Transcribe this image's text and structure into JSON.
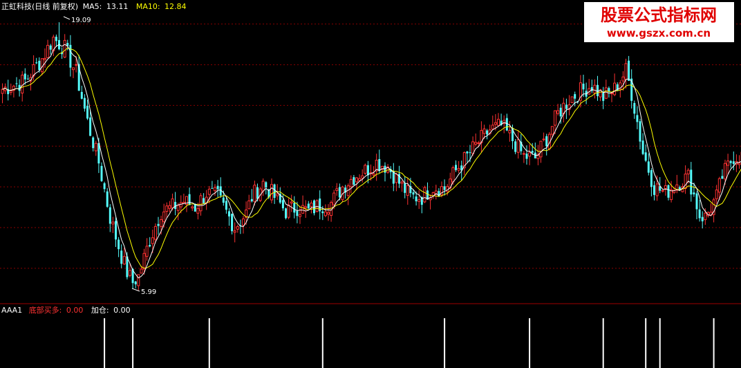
{
  "chart_data": {
    "type": "candlestick",
    "header": {
      "stock": "正虹科技(日线 前复权)",
      "ma5_label": "MA5:",
      "ma5_value": "13.11",
      "ma10_label": "MA10:",
      "ma10_value": "12.84"
    },
    "annotations": {
      "high_label": "19.09",
      "high_value": 19.09,
      "low_label": "5.99",
      "low_value": 5.99
    },
    "indicator": {
      "name": "AAA1",
      "signal_label": "底部买多:",
      "signal_value": "0.00",
      "add_label": "加仓:",
      "add_value": "0.00"
    },
    "watermark": {
      "title": "股票公式指标网",
      "url": "www.gszx.com.cn"
    },
    "ylim": [
      5.5,
      19.5
    ],
    "colors": {
      "up": "#ff3232",
      "down": "#54fcfc",
      "ma5": "#ffffff",
      "ma10": "#ffff00",
      "grid": "#8b0000",
      "signal": "#ffffff",
      "header_text": "#ffffff",
      "ma10_text": "#ffff00",
      "signal_text": "#ff3232"
    },
    "anchors": [
      [
        0,
        15.8
      ],
      [
        8,
        16.2
      ],
      [
        14,
        17.3
      ],
      [
        18,
        18.3
      ],
      [
        22,
        17.8
      ],
      [
        26,
        16.6
      ],
      [
        30,
        14.2
      ],
      [
        34,
        12.2
      ],
      [
        38,
        9.5
      ],
      [
        42,
        7.6
      ],
      [
        44,
        6.8
      ],
      [
        46,
        6.3
      ],
      [
        48,
        6.6
      ],
      [
        52,
        8.4
      ],
      [
        56,
        9.8
      ],
      [
        60,
        10.0
      ],
      [
        64,
        10.3
      ],
      [
        68,
        10.0
      ],
      [
        72,
        10.7
      ],
      [
        76,
        10.5
      ],
      [
        80,
        9.5
      ],
      [
        82,
        9.0
      ],
      [
        86,
        9.7
      ],
      [
        88,
        10.5
      ],
      [
        92,
        11.2
      ],
      [
        96,
        10.5
      ],
      [
        100,
        9.8
      ],
      [
        104,
        10.0
      ],
      [
        108,
        9.8
      ],
      [
        112,
        10.1
      ],
      [
        116,
        10.2
      ],
      [
        120,
        11.0
      ],
      [
        124,
        11.5
      ],
      [
        128,
        11.8
      ],
      [
        132,
        12.2
      ],
      [
        136,
        12.0
      ],
      [
        140,
        11.2
      ],
      [
        144,
        10.5
      ],
      [
        148,
        10.5
      ],
      [
        152,
        11.0
      ],
      [
        156,
        10.9
      ],
      [
        160,
        11.8
      ],
      [
        164,
        12.5
      ],
      [
        168,
        13.2
      ],
      [
        172,
        13.8
      ],
      [
        176,
        14.0
      ],
      [
        180,
        13.3
      ],
      [
        184,
        12.5
      ],
      [
        188,
        12.4
      ],
      [
        192,
        13.4
      ],
      [
        196,
        14.6
      ],
      [
        200,
        15.3
      ],
      [
        204,
        15.7
      ],
      [
        208,
        16.0
      ],
      [
        212,
        15.4
      ],
      [
        216,
        15.8
      ],
      [
        220,
        16.7
      ],
      [
        222,
        15.6
      ],
      [
        224,
        14.2
      ],
      [
        226,
        12.7
      ],
      [
        230,
        11.0
      ],
      [
        234,
        10.7
      ],
      [
        238,
        11.2
      ],
      [
        242,
        11.5
      ],
      [
        244,
        10.6
      ],
      [
        246,
        9.6
      ],
      [
        248,
        9.5
      ],
      [
        250,
        10.0
      ],
      [
        252,
        10.5
      ],
      [
        254,
        11.5
      ],
      [
        256,
        12.0
      ],
      [
        258,
        12.5
      ]
    ],
    "sell_signal_bars": [
      36,
      46,
      73,
      113,
      156,
      186,
      212,
      227,
      232,
      251
    ]
  }
}
